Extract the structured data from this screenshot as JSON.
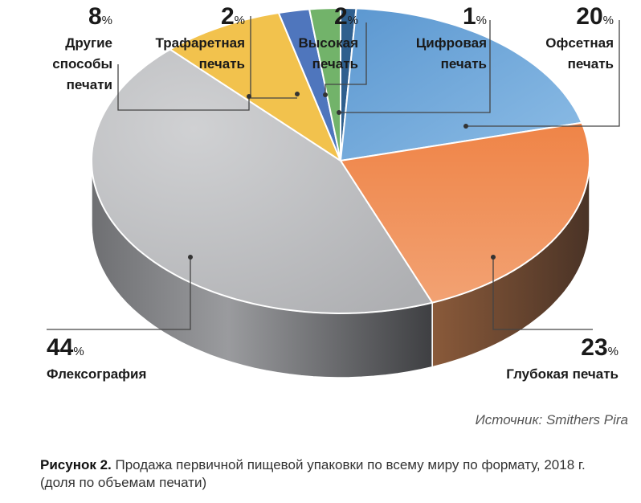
{
  "chart_data": {
    "type": "pie",
    "slices": [
      {
        "label": "Цифровая печать",
        "value": 1,
        "color": "#2f5f8e"
      },
      {
        "label": "Офсетная печать",
        "value": 20,
        "color": "#6ea7d8"
      },
      {
        "label": "Глубокая печать",
        "value": 23,
        "color": "#ef8c52"
      },
      {
        "label": "Флексография",
        "value": 44,
        "color": "#b9babd"
      },
      {
        "label": "Другие способы печати",
        "value": 8,
        "color": "#f2c24d"
      },
      {
        "label": "Трафаретная печать",
        "value": 2,
        "color": "#4f76bd"
      },
      {
        "label": "Высокая печать",
        "value": 2,
        "color": "#72b36a"
      }
    ],
    "pct_unit": "%"
  },
  "labels": {
    "other": {
      "pct": "8",
      "line1": "Другие",
      "line2": "способы",
      "line3": "печати"
    },
    "screen": {
      "pct": "2",
      "line1": "Трафаретная",
      "line2": "печать"
    },
    "letterpress": {
      "pct": "2",
      "line1": "Высокая",
      "line2": "печать"
    },
    "digital": {
      "pct": "1",
      "line1": "Цифровая",
      "line2": "печать"
    },
    "offset": {
      "pct": "20",
      "line1": "Офсетная",
      "line2": "печать"
    },
    "flexo": {
      "pct": "44",
      "line1": "Флексография"
    },
    "gravure": {
      "pct": "23",
      "line1": "Глубокая печать"
    }
  },
  "source": "Источник: Smithers Pira",
  "caption": {
    "bold": "Рисунок 2.",
    "text": " Продажа первичной пищевой упаковки по всему миру по формату, 2018 г. (доля по объемам печати)"
  }
}
